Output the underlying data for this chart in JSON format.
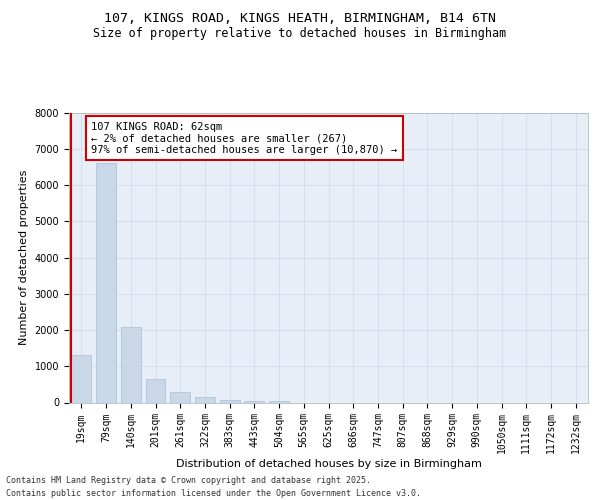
{
  "title_line1": "107, KINGS ROAD, KINGS HEATH, BIRMINGHAM, B14 6TN",
  "title_line2": "Size of property relative to detached houses in Birmingham",
  "xlabel": "Distribution of detached houses by size in Birmingham",
  "ylabel": "Number of detached properties",
  "categories": [
    "19sqm",
    "79sqm",
    "140sqm",
    "201sqm",
    "261sqm",
    "322sqm",
    "383sqm",
    "443sqm",
    "504sqm",
    "565sqm",
    "625sqm",
    "686sqm",
    "747sqm",
    "807sqm",
    "868sqm",
    "929sqm",
    "990sqm",
    "1050sqm",
    "1111sqm",
    "1172sqm",
    "1232sqm"
  ],
  "values": [
    1300,
    6620,
    2080,
    660,
    290,
    140,
    75,
    45,
    50,
    0,
    0,
    0,
    0,
    0,
    0,
    0,
    0,
    0,
    0,
    0,
    0
  ],
  "bar_color": "#c8d8e8",
  "bar_edge_color": "#a8bfd0",
  "highlight_color": "#cc0000",
  "annotation_text_line1": "107 KINGS ROAD: 62sqm",
  "annotation_text_line2": "← 2% of detached houses are smaller (267)",
  "annotation_text_line3": "97% of semi-detached houses are larger (10,870) →",
  "annotation_box_color": "#ffffff",
  "annotation_box_edge": "#cc0000",
  "ylim": [
    0,
    8000
  ],
  "yticks": [
    0,
    1000,
    2000,
    3000,
    4000,
    5000,
    6000,
    7000,
    8000
  ],
  "grid_color": "#cdd8e8",
  "background_color": "#e8eef8",
  "footer_line1": "Contains HM Land Registry data © Crown copyright and database right 2025.",
  "footer_line2": "Contains public sector information licensed under the Open Government Licence v3.0.",
  "title_fontsize": 9.5,
  "subtitle_fontsize": 8.5,
  "axis_label_fontsize": 8,
  "tick_fontsize": 7,
  "annotation_fontsize": 7.5,
  "footer_fontsize": 6
}
